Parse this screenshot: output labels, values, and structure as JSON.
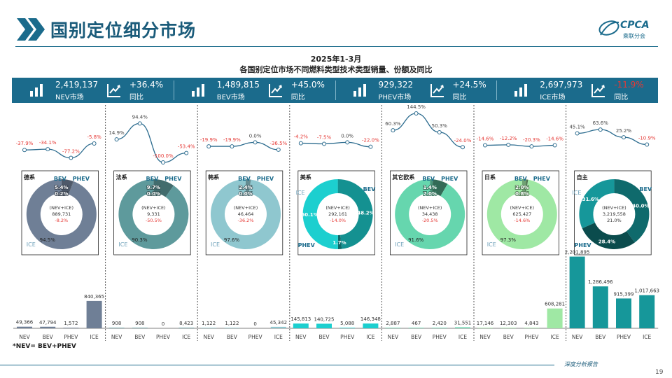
{
  "page": {
    "title": "国别定位细分市场",
    "page_number": "19",
    "footnote": "*NEV= BEV+PHEV",
    "footer_tag": "深度分析报告"
  },
  "logo": {
    "text": "CPCA",
    "subtext": "乘联分会"
  },
  "chart_title": {
    "line1": "2025年1-3月",
    "line2": "各国别定位市场不同燃料类型技术类型销量、份额及同比"
  },
  "colors": {
    "header": "#1b6b8c",
    "positive": "#222222",
    "negative": "#e53935"
  },
  "kpis": [
    {
      "name": "NEV",
      "value": "2,419,137",
      "label": "NEV市场",
      "growth": "+36.4%",
      "growth_label": "同比",
      "bar_icon": "bar-chart-icon",
      "trend_icon": "trend-chart-icon",
      "negative": false
    },
    {
      "name": "BEV",
      "value": "1,489,815",
      "label": "BEV市场",
      "growth": "+45.0%",
      "growth_label": "同比",
      "bar_icon": "bar-chart-icon",
      "trend_icon": "trend-chart-icon",
      "negative": false
    },
    {
      "name": "PHEV",
      "value": "929,322",
      "label": "PHEV市场",
      "growth": "+24.5%",
      "growth_label": "同比",
      "bar_icon": "bar-chart-icon",
      "trend_icon": "trend-chart-icon",
      "negative": false
    },
    {
      "name": "ICE",
      "value": "2,697,973",
      "label": "ICE市场",
      "growth": "-11.9%",
      "growth_label": "同比",
      "bar_icon": "bar-chart-icon",
      "trend_icon": "trend-chart-icon",
      "negative": true
    }
  ],
  "chart_data": {
    "type": "bar",
    "categories": [
      "NEV",
      "BEV",
      "PHEV",
      "ICE"
    ],
    "groups": [
      {
        "name": "德系",
        "color": "#6f7f96",
        "volumes": [
          49366,
          47794,
          1572,
          840365
        ],
        "volume_labels": [
          "49,366",
          "47,794",
          "1,572",
          "840,365"
        ],
        "yoy": [
          -37.9,
          -34.1,
          -77.2,
          -5.8
        ],
        "yoy_labels": [
          "-37.9%",
          "-34.1%",
          "-77.2%",
          "-5.8%"
        ],
        "share": {
          "bev": 5.4,
          "phev": 0.2,
          "ice": 94.5
        },
        "share_labels": {
          "bev": "5.4%",
          "phev": "0.2%",
          "ice": "94.5%"
        },
        "center": {
          "label": "(NEV+ICE)",
          "total": "889,731",
          "growth": "-8.2%"
        },
        "legend": {
          "bev": "BEV",
          "phev": "PHEV",
          "ice": "ICE"
        }
      },
      {
        "name": "法系",
        "color": "#5e9a9c",
        "volumes": [
          908,
          908,
          0,
          8423
        ],
        "volume_labels": [
          "908",
          "908",
          "0",
          "8,423"
        ],
        "yoy": [
          14.9,
          94.4,
          -100.0,
          -53.4
        ],
        "yoy_labels": [
          "14.9%",
          "94.4%",
          "-100.0%",
          "-53.4%"
        ],
        "share": {
          "bev": 9.7,
          "phev": 0.0,
          "ice": 90.3
        },
        "share_labels": {
          "bev": "9.7%",
          "phev": "0.0%",
          "ice": "90.3%"
        },
        "center": {
          "label": "(NEV+ICE)",
          "total": "9,331",
          "growth": "-50.5%"
        },
        "legend": {
          "bev": "BEV",
          "phev": "PHEV",
          "ice": "ICE"
        }
      },
      {
        "name": "韩系",
        "color": "#8fc7cf",
        "volumes": [
          1122,
          1122,
          0,
          45342
        ],
        "volume_labels": [
          "1,122",
          "1,122",
          "0",
          "45,342"
        ],
        "yoy": [
          -19.9,
          -19.9,
          0.0,
          -36.5
        ],
        "yoy_labels": [
          "-19.9%",
          "-19.9%",
          "0.0%",
          "-36.5%"
        ],
        "share": {
          "bev": 2.4,
          "phev": 0.0,
          "ice": 97.6
        },
        "share_labels": {
          "bev": "2.4%",
          "phev": "0.0%",
          "ice": "97.6%"
        },
        "center": {
          "label": "(NEV+ICE)",
          "total": "46,464",
          "growth": "-36.2%"
        },
        "legend": {
          "bev": "BEV",
          "phev": "PHEV",
          "ice": "ICE"
        }
      },
      {
        "name": "美系",
        "color": "#1ccfcf",
        "volumes": [
          145813,
          140725,
          5088,
          146348
        ],
        "volume_labels": [
          "145,813",
          "140,725",
          "5,088",
          "146,348"
        ],
        "yoy": [
          -4.2,
          -7.5,
          0.0,
          -22.0
        ],
        "yoy_labels": [
          "-4.2%",
          "-7.5%",
          "0.0%",
          "-22.0%"
        ],
        "share": {
          "bev": 48.2,
          "phev": 1.7,
          "ice": 50.1
        },
        "share_labels": {
          "bev": "48.2%",
          "phev": "1.7%",
          "ice": "50.1%"
        },
        "center": {
          "label": "(NEV+ICE)",
          "total": "292,161",
          "growth": "-14.0%"
        },
        "legend": {
          "bev": "BEV",
          "phev": "PHEV",
          "ice": "ICE"
        }
      },
      {
        "name": "其它欧系",
        "color": "#66d6ae",
        "volumes": [
          2887,
          467,
          2420,
          31551
        ],
        "volume_labels": [
          "2,887",
          "467",
          "2,420",
          "31,551"
        ],
        "yoy": [
          60.3,
          144.5,
          50.3,
          -24.0
        ],
        "yoy_labels": [
          "60.3%",
          "144.5%",
          "50.3%",
          "-24.0%"
        ],
        "share": {
          "bev": 1.4,
          "phev": 7.0,
          "ice": 91.6
        },
        "share_labels": {
          "bev": "1.4%",
          "phev": "7.0%",
          "ice": "91.6%"
        },
        "center": {
          "label": "(NEV+ICE)",
          "total": "34,438",
          "growth": "-20.5%"
        },
        "legend": {
          "bev": "BEV",
          "phev": "PHEV",
          "ice": "ICE"
        }
      },
      {
        "name": "日系",
        "color": "#9fe8a4",
        "volumes": [
          17146,
          12303,
          4843,
          608281
        ],
        "volume_labels": [
          "17,146",
          "12,303",
          "4,843",
          "608,281"
        ],
        "yoy": [
          -14.6,
          -12.2,
          -20.3,
          -14.6
        ],
        "yoy_labels": [
          "-14.6%",
          "-12.2%",
          "-20.3%",
          "-14.6%"
        ],
        "share": {
          "bev": 2.0,
          "phev": 0.8,
          "ice": 97.3
        },
        "share_labels": {
          "bev": "2.0%",
          "phev": "0.8%",
          "ice": "97.3%"
        },
        "center": {
          "label": "(NEV+ICE)",
          "total": "625,427",
          "growth": "-14.6%"
        },
        "legend": {
          "bev": "BEV",
          "phev": "PHEV",
          "ice": "ICE"
        }
      },
      {
        "name": "自主",
        "color": "#16979a",
        "volumes": [
          2201895,
          1286496,
          915399,
          1017663
        ],
        "volume_labels": [
          "2,201,895",
          "1,286,496",
          "915,399",
          "1,017,663"
        ],
        "yoy": [
          45.1,
          63.6,
          25.2,
          -10.9
        ],
        "yoy_labels": [
          "45.1%",
          "63.6%",
          "25.2%",
          "-10.9%"
        ],
        "share": {
          "bev": 40.0,
          "phev": 28.4,
          "ice": 31.6
        },
        "share_labels": {
          "bev": "40.0%",
          "phev": "28.4%",
          "ice": "31.6%"
        },
        "center": {
          "label": "(NEV+ICE)",
          "total": "3,219,558",
          "growth": "21.0%"
        },
        "legend": {
          "bev": "BEV",
          "phev": "PHEV",
          "ice": "ICE"
        }
      }
    ]
  }
}
